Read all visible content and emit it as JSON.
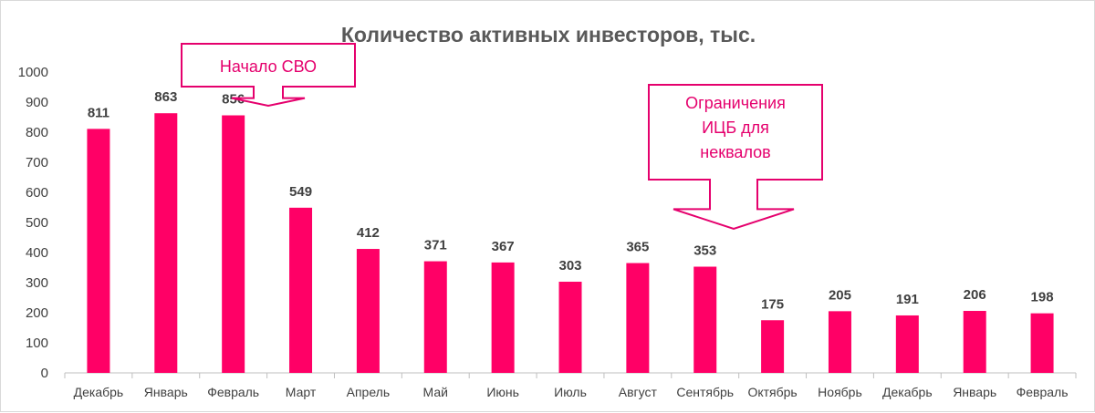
{
  "colors": {
    "bar": "#ff0066",
    "callout": "#e5006d",
    "axis": "#bfbfbf",
    "text": "#404040",
    "title": "#595959"
  },
  "chart_data": {
    "type": "bar",
    "title": "Количество активных инвесторов, тыс.",
    "xlabel": "",
    "ylabel": "",
    "ylim": [
      0,
      1000
    ],
    "yticks": [
      "0",
      "100",
      "200",
      "300",
      "400",
      "500",
      "600",
      "700",
      "800",
      "900",
      "1000"
    ],
    "grid": false,
    "categories": [
      "Декабрь",
      "Январь",
      "Февраль",
      "Март",
      "Апрель",
      "Май",
      "Июнь",
      "Июль",
      "Август",
      "Сентябрь",
      "Октябрь",
      "Ноябрь",
      "Декабрь",
      "Январь",
      "Февраль"
    ],
    "values": [
      811,
      863,
      856,
      549,
      412,
      371,
      367,
      303,
      365,
      353,
      175,
      205,
      191,
      206,
      198
    ],
    "annotations": [
      {
        "lines": [
          "Начало СВО"
        ],
        "points_to": 2
      },
      {
        "lines": [
          "Ограничения",
          "ИЦБ для",
          "неквалов"
        ],
        "points_to": 9
      }
    ]
  }
}
